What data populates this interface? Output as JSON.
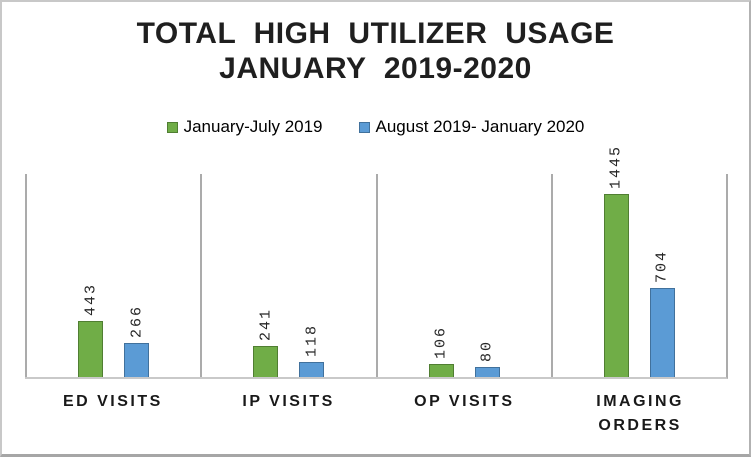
{
  "title": {
    "line1": "TOTAL HIGH UTILIZER USAGE",
    "line2": "JANUARY 2019-2020"
  },
  "chart_data": {
    "type": "bar",
    "title": "TOTAL HIGH UTILIZER USAGE JANUARY 2019-2020",
    "categories": [
      "ED VISITS",
      "IP VISITS",
      "OP VISITS",
      "IMAGING ORDERS"
    ],
    "series": [
      {
        "name": "January-July 2019",
        "color": "#70AD47",
        "border_color": "#507E32",
        "values": [
          443,
          241,
          106,
          1445
        ]
      },
      {
        "name": "August 2019- January 2020",
        "color": "#5B9BD5",
        "border_color": "#41719C",
        "values": [
          266,
          118,
          80,
          704
        ]
      }
    ],
    "data_labels": [
      443,
      266,
      241,
      118,
      106,
      80,
      1445,
      704
    ],
    "ylim": [
      0,
      1600
    ],
    "xlabel": "",
    "ylabel": "",
    "legend_position": "top",
    "grid": "vertical-category-separators",
    "data_label_style": "rotated-90"
  }
}
